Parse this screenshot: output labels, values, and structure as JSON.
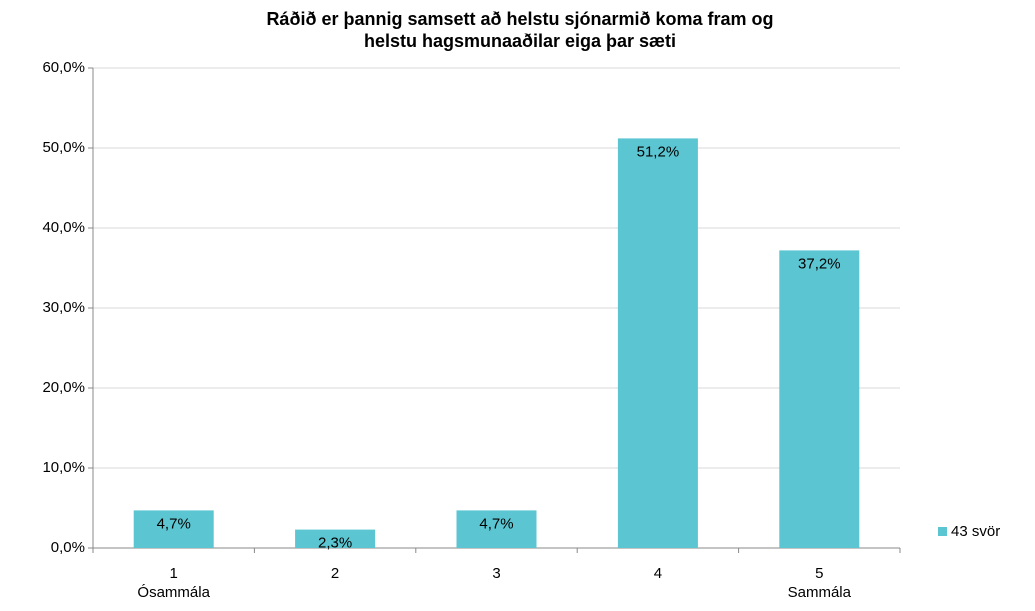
{
  "chart_data": {
    "type": "bar",
    "title": [
      "Ráðið er þannig samsett að helstu sjónarmið koma fram og",
      "helstu hagsmunaaðilar eiga þar sæti"
    ],
    "categories": [
      [
        "1",
        "Ósammála"
      ],
      [
        "2"
      ],
      [
        "3"
      ],
      [
        "4"
      ],
      [
        "5",
        "Sammála"
      ]
    ],
    "series": [
      {
        "name": "43 svör",
        "color": "#5bc5d1",
        "values": [
          4.7,
          2.3,
          4.7,
          51.2,
          37.2
        ],
        "value_labels": [
          "4,7%",
          "2,3%",
          "4,7%",
          "51,2%",
          "37,2%"
        ]
      }
    ],
    "ylim": [
      0,
      60
    ],
    "yticks": [
      {
        "value": 0,
        "label": "0,0%"
      },
      {
        "value": 10,
        "label": "10,0%"
      },
      {
        "value": 20,
        "label": "20,0%"
      },
      {
        "value": 30,
        "label": "30,0%"
      },
      {
        "value": 40,
        "label": "40,0%"
      },
      {
        "value": 50,
        "label": "50,0%"
      },
      {
        "value": 60,
        "label": "60,0%"
      }
    ],
    "grid": true,
    "legend": "right"
  }
}
